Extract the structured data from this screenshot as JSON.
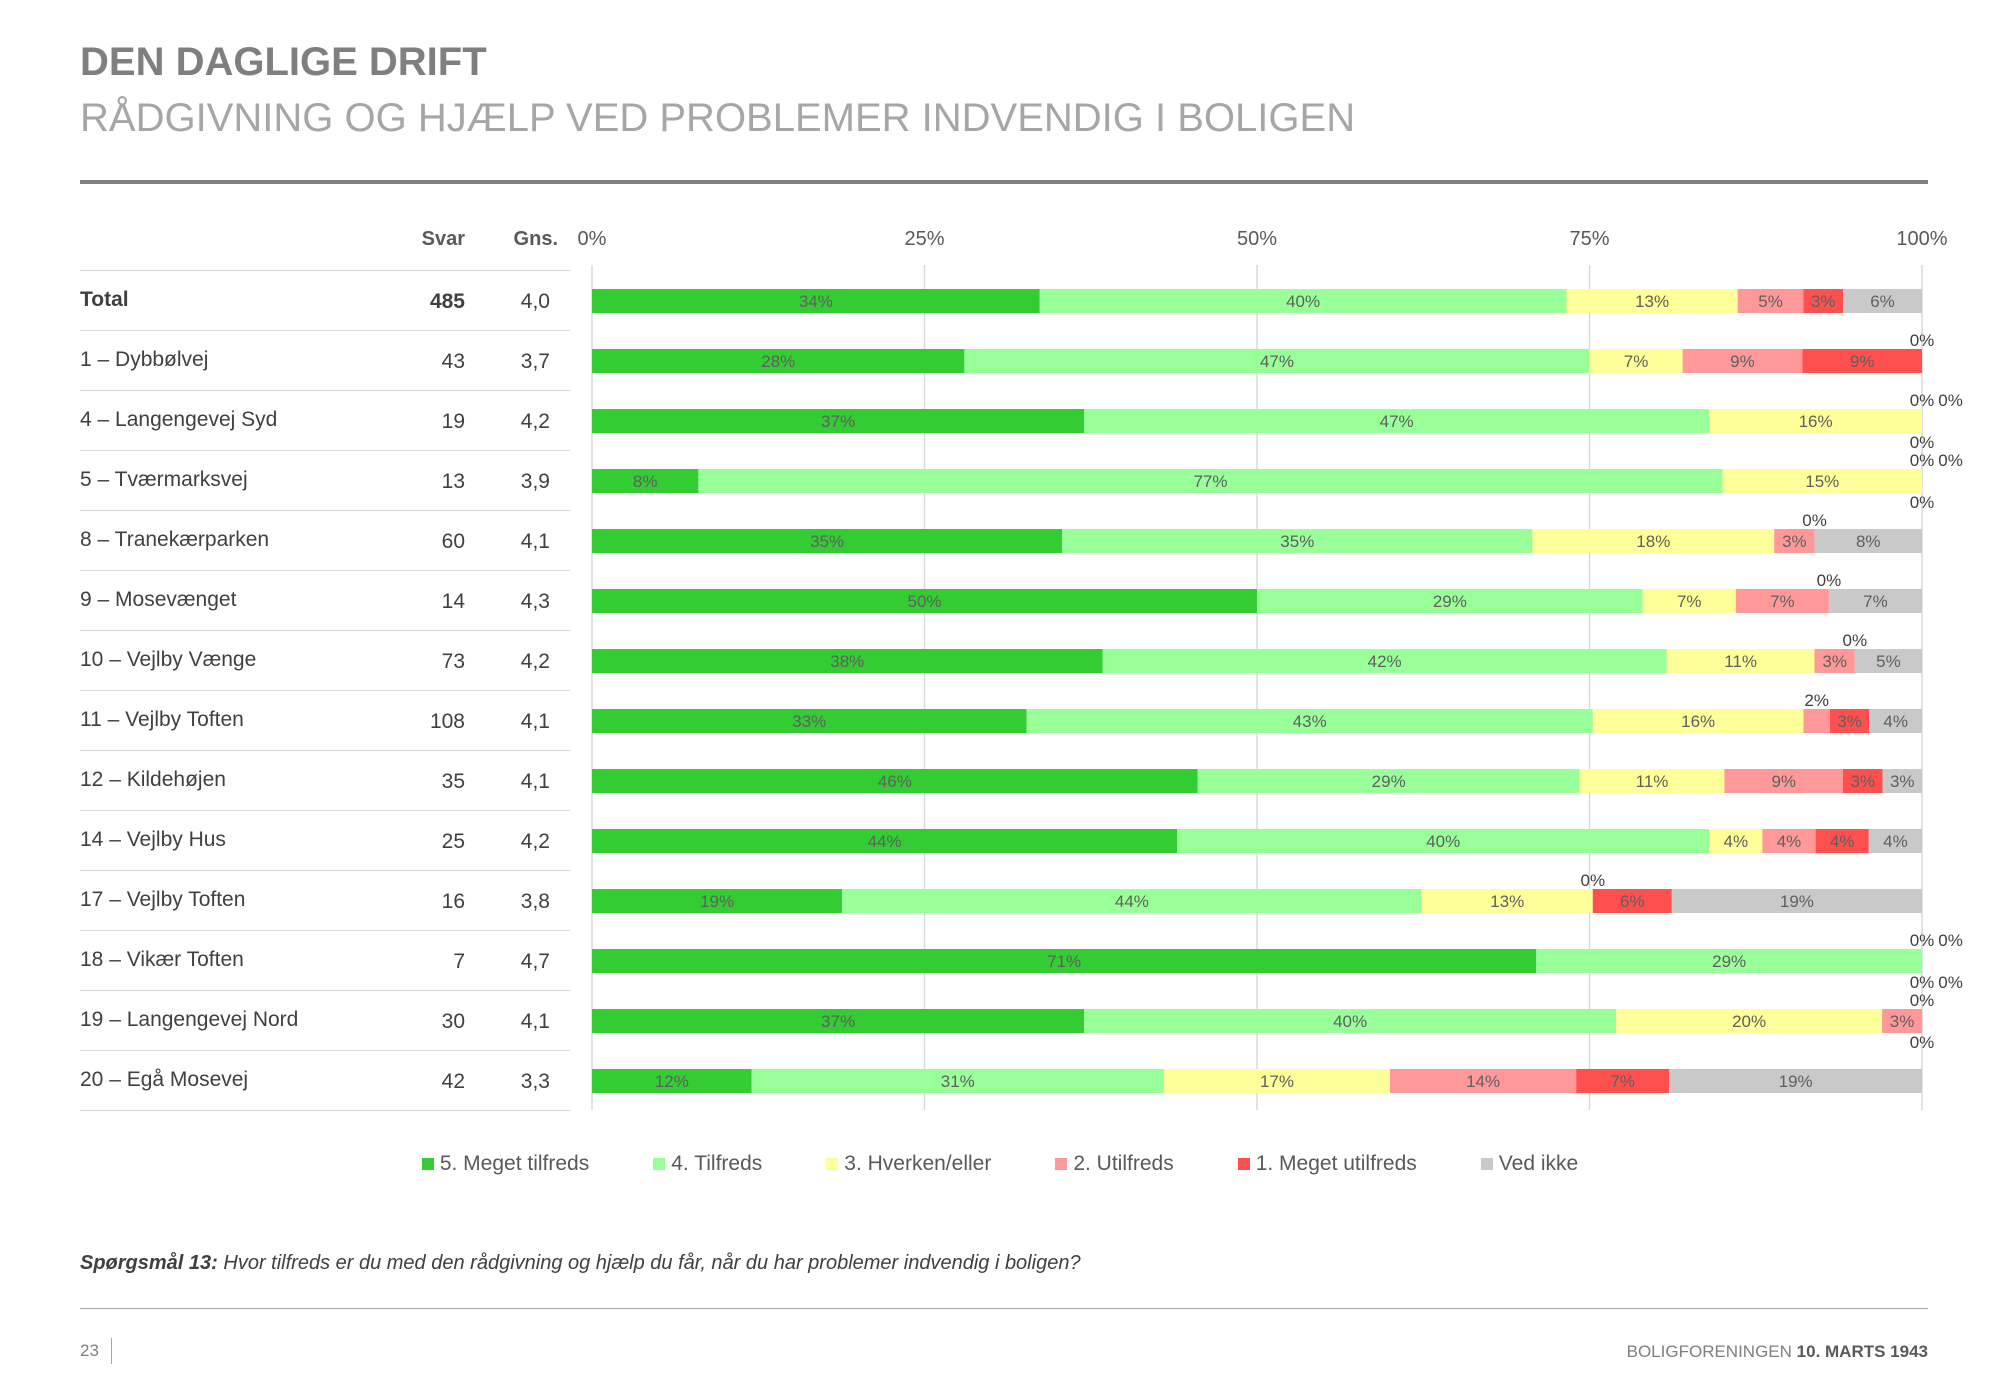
{
  "header": {
    "title": "DEN DAGLIGE DRIFT",
    "subtitle": "RÅDGIVNING OG HJÆLP VED PROBLEMER INDVENDIG I BOLIGEN"
  },
  "table": {
    "col_svar": "Svar",
    "col_gns": "Gns."
  },
  "chart_data": {
    "type": "bar",
    "orientation": "horizontal-stacked-100",
    "x_ticks": [
      "0%",
      "25%",
      "50%",
      "75%",
      "100%"
    ],
    "xlim": [
      0,
      100
    ],
    "grid": true,
    "legend_position": "bottom",
    "series": [
      {
        "name": "5. Meget tilfreds",
        "color": "#33cc33"
      },
      {
        "name": "4. Tilfreds",
        "color": "#99ff99"
      },
      {
        "name": "3. Hverken/eller",
        "color": "#ffff99"
      },
      {
        "name": "2. Utilfreds",
        "color": "#ff9999"
      },
      {
        "name": "1. Meget utilfreds",
        "color": "#ff5050"
      },
      {
        "name": "Ved ikke",
        "color": "#c9c9c9"
      }
    ],
    "rows": [
      {
        "label": "Total",
        "svar": "485",
        "gns": "4,0",
        "bold": true,
        "values": [
          34,
          40,
          13,
          5,
          3,
          6
        ]
      },
      {
        "label": "1 – Dybbølvej",
        "svar": "43",
        "gns": "3,7",
        "values": [
          28,
          47,
          7,
          9,
          9,
          0
        ]
      },
      {
        "label": "4 – Langengevej Syd",
        "svar": "19",
        "gns": "4,2",
        "values": [
          37,
          47,
          16,
          0,
          0,
          0
        ]
      },
      {
        "label": "5 – Tværmarksvej",
        "svar": "13",
        "gns": "3,9",
        "values": [
          8,
          77,
          15,
          0,
          0,
          0
        ]
      },
      {
        "label": "8 – Tranekærparken",
        "svar": "60",
        "gns": "4,1",
        "values": [
          35,
          35,
          18,
          3,
          0,
          8
        ]
      },
      {
        "label": "9 – Mosevænget",
        "svar": "14",
        "gns": "4,3",
        "values": [
          50,
          29,
          7,
          7,
          0,
          7
        ]
      },
      {
        "label": "10 – Vejlby Vænge",
        "svar": "73",
        "gns": "4,2",
        "values": [
          38,
          42,
          11,
          3,
          0,
          5
        ]
      },
      {
        "label": "11 – Vejlby Toften",
        "svar": "108",
        "gns": "4,1",
        "values": [
          33,
          43,
          16,
          2,
          3,
          4
        ]
      },
      {
        "label": "12 – Kildehøjen",
        "svar": "35",
        "gns": "4,1",
        "values": [
          46,
          29,
          11,
          9,
          3,
          3
        ]
      },
      {
        "label": "14 – Vejlby Hus",
        "svar": "25",
        "gns": "4,2",
        "values": [
          44,
          40,
          4,
          4,
          4,
          4
        ]
      },
      {
        "label": "17 – Vejlby Toften",
        "svar": "16",
        "gns": "3,8",
        "values": [
          19,
          44,
          13,
          0,
          6,
          19
        ]
      },
      {
        "label": "18 – Vikær Toften",
        "svar": "7",
        "gns": "4,7",
        "values": [
          71,
          29,
          0,
          0,
          0,
          0
        ]
      },
      {
        "label": "19 – Langengevej Nord",
        "svar": "30",
        "gns": "4,1",
        "values": [
          37,
          40,
          20,
          3,
          0,
          0
        ]
      },
      {
        "label": "20 – Egå Mosevej",
        "svar": "42",
        "gns": "3,3",
        "values": [
          12,
          31,
          17,
          14,
          7,
          19
        ]
      }
    ]
  },
  "question": {
    "label": "Spørgsmål 13:",
    "text": " Hvor tilfreds er du med den rådgivning og hjælp du får, når du har problemer indvendig i boligen?"
  },
  "footer": {
    "page_number": "23",
    "org": "BOLIGFORENINGEN ",
    "date": "10. MARTS 1943"
  }
}
